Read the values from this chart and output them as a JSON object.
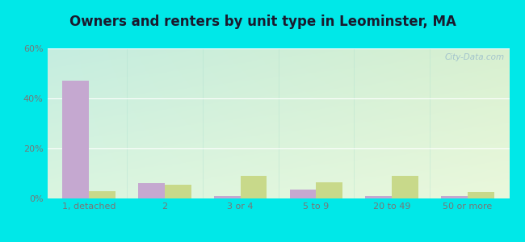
{
  "title": "Owners and renters by unit type in Leominster, MA",
  "categories": [
    "1, detached",
    "2",
    "3 or 4",
    "5 to 9",
    "20 to 49",
    "50 or more"
  ],
  "owner_values": [
    47,
    6,
    1,
    3.5,
    1,
    1
  ],
  "renter_values": [
    3,
    5.5,
    9,
    6.5,
    9,
    2.5
  ],
  "owner_color": "#c5a8d0",
  "renter_color": "#c8d98a",
  "ylim": [
    0,
    60
  ],
  "yticks": [
    0,
    20,
    40,
    60
  ],
  "ytick_labels": [
    "0%",
    "20%",
    "40%",
    "60%"
  ],
  "bar_width": 0.35,
  "watermark": "City-Data.com",
  "outer_bg": "#00e8e8",
  "plot_bg_topleft": "#c8f0e8",
  "plot_bg_bottomright": "#e8f5d8",
  "title_fontsize": 12,
  "tick_fontsize": 8,
  "tick_color": "#777777"
}
